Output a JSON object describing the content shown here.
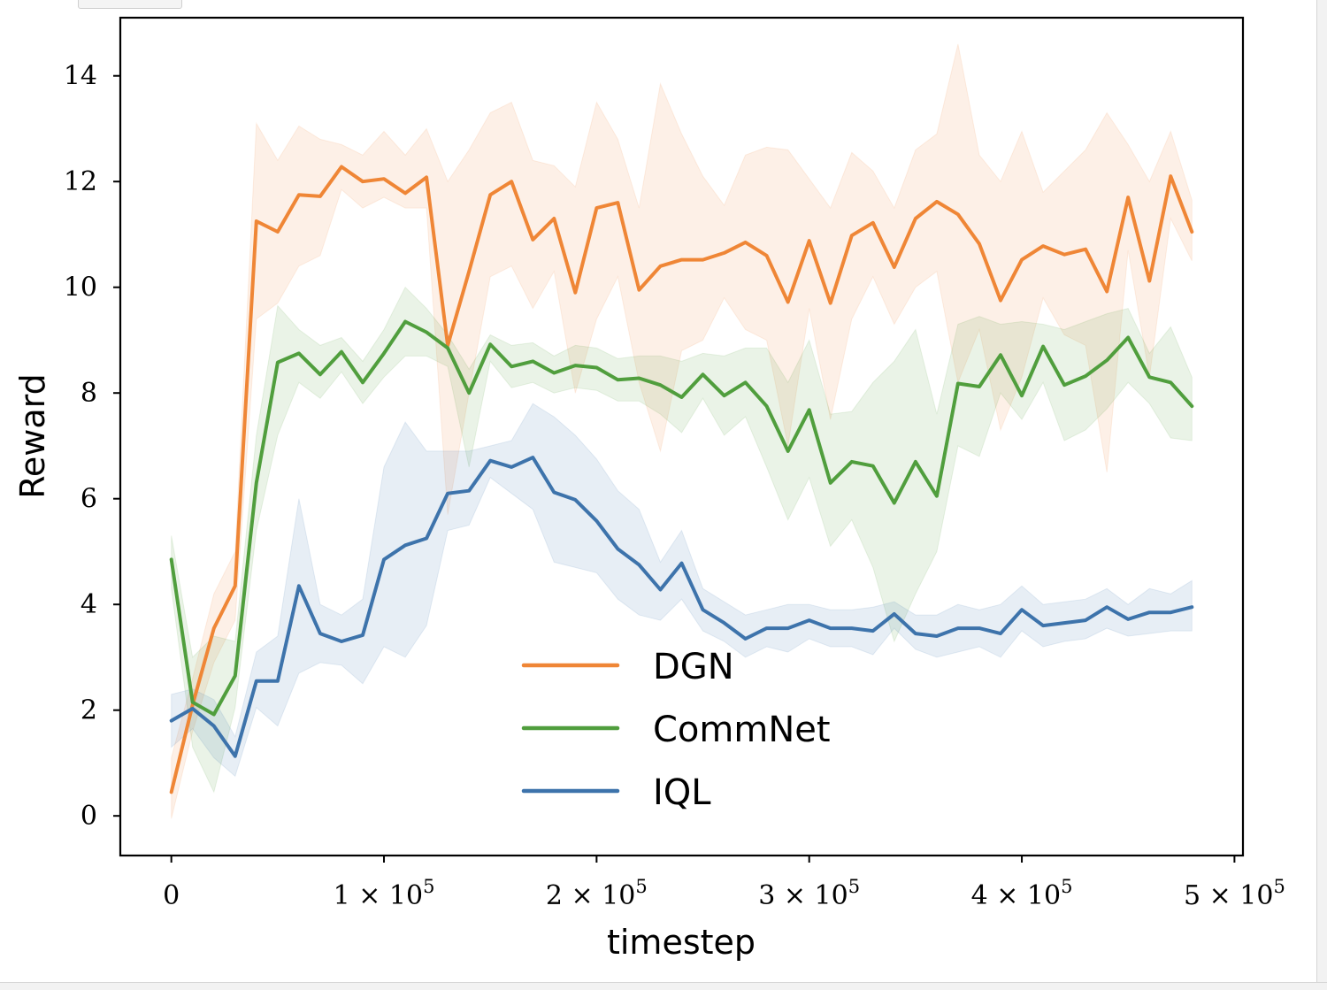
{
  "chart_data": {
    "type": "line",
    "xlabel": "timestep",
    "ylabel": "Reward",
    "xlim": [
      -24000,
      504000
    ],
    "ylim": [
      -0.75,
      15.1
    ],
    "x_ticks": [
      {
        "value": 0,
        "mant": "0",
        "exp": ""
      },
      {
        "value": 100000,
        "mant": "1 × 10",
        "exp": "5"
      },
      {
        "value": 200000,
        "mant": "2 × 10",
        "exp": "5"
      },
      {
        "value": 300000,
        "mant": "3 × 10",
        "exp": "5"
      },
      {
        "value": 400000,
        "mant": "4 × 10",
        "exp": "5"
      },
      {
        "value": 500000,
        "mant": "5 × 10",
        "exp": "5"
      }
    ],
    "y_ticks": [
      {
        "value": 0,
        "label": "0"
      },
      {
        "value": 2,
        "label": "2"
      },
      {
        "value": 4,
        "label": "4"
      },
      {
        "value": 6,
        "label": "6"
      },
      {
        "value": 8,
        "label": "8"
      },
      {
        "value": 10,
        "label": "10"
      },
      {
        "value": 12,
        "label": "12"
      },
      {
        "value": 14,
        "label": "14"
      }
    ],
    "x": [
      0,
      10000,
      20000,
      30000,
      40000,
      50000,
      60000,
      70000,
      80000,
      90000,
      100000,
      110000,
      120000,
      130000,
      140000,
      150000,
      160000,
      170000,
      180000,
      190000,
      200000,
      210000,
      220000,
      230000,
      240000,
      250000,
      260000,
      270000,
      280000,
      290000,
      300000,
      310000,
      320000,
      330000,
      340000,
      350000,
      360000,
      370000,
      380000,
      390000,
      400000,
      410000,
      420000,
      430000,
      440000,
      450000,
      460000,
      470000,
      480000
    ],
    "legend_position": "lower center",
    "series": [
      {
        "name": "DGN",
        "color": "#ef8636",
        "values": [
          0.45,
          2.1,
          3.55,
          4.35,
          11.25,
          11.05,
          11.75,
          11.72,
          12.28,
          12.0,
          12.05,
          11.78,
          12.08,
          8.9,
          10.3,
          11.75,
          12.0,
          10.9,
          11.3,
          9.9,
          11.5,
          11.6,
          9.95,
          10.4,
          10.52,
          10.52,
          10.65,
          10.85,
          10.6,
          9.72,
          10.88,
          9.7,
          10.98,
          11.22,
          10.38,
          11.3,
          11.62,
          11.38,
          10.82,
          9.75,
          10.52,
          10.78,
          10.62,
          10.72,
          9.92,
          11.7,
          10.12,
          12.1,
          11.05
        ],
        "band_upper": [
          1.1,
          2.6,
          4.2,
          5.0,
          13.1,
          12.4,
          13.05,
          12.8,
          12.7,
          12.5,
          12.95,
          12.5,
          13.0,
          12.0,
          12.6,
          13.3,
          13.5,
          12.4,
          12.3,
          11.9,
          13.5,
          12.8,
          11.5,
          13.85,
          12.9,
          12.1,
          11.55,
          12.5,
          12.65,
          12.6,
          12.05,
          11.5,
          12.55,
          12.2,
          11.5,
          12.6,
          12.9,
          14.6,
          12.5,
          12.0,
          12.95,
          11.8,
          12.2,
          12.6,
          13.3,
          12.7,
          12.0,
          12.95,
          11.65
        ],
        "band_lower": [
          -0.05,
          1.6,
          2.9,
          3.7,
          9.4,
          9.7,
          10.4,
          10.6,
          11.85,
          11.5,
          11.7,
          11.5,
          11.5,
          5.7,
          8.0,
          10.2,
          10.4,
          9.6,
          10.3,
          8.0,
          9.4,
          10.2,
          8.2,
          6.9,
          8.8,
          9.0,
          9.8,
          9.2,
          9.0,
          7.0,
          9.6,
          7.5,
          9.4,
          10.2,
          9.3,
          10.0,
          10.3,
          8.2,
          9.2,
          7.3,
          8.3,
          9.8,
          9.1,
          8.9,
          6.5,
          10.7,
          8.3,
          11.3,
          10.5
        ]
      },
      {
        "name": "CommNet",
        "color": "#509e3d",
        "values": [
          4.85,
          2.15,
          1.92,
          2.65,
          6.3,
          8.58,
          8.75,
          8.35,
          8.78,
          8.2,
          8.75,
          9.35,
          9.15,
          8.85,
          8.0,
          8.92,
          8.5,
          8.6,
          8.38,
          8.52,
          8.48,
          8.25,
          8.28,
          8.15,
          7.92,
          8.35,
          7.95,
          8.2,
          7.75,
          6.9,
          7.68,
          6.3,
          6.7,
          6.62,
          5.92,
          6.7,
          6.05,
          8.18,
          8.12,
          8.72,
          7.95,
          8.88,
          8.15,
          8.32,
          8.62,
          9.05,
          8.3,
          8.2,
          7.75
        ],
        "band_upper": [
          5.3,
          3.0,
          3.4,
          3.3,
          7.2,
          9.65,
          9.2,
          8.9,
          9.05,
          8.6,
          9.2,
          10.0,
          9.6,
          9.1,
          8.45,
          9.1,
          8.9,
          8.95,
          8.7,
          8.9,
          8.85,
          8.65,
          8.7,
          8.7,
          8.6,
          8.75,
          8.7,
          8.85,
          8.85,
          8.2,
          9.0,
          7.6,
          7.65,
          8.2,
          8.6,
          9.2,
          7.6,
          9.3,
          9.45,
          9.3,
          9.35,
          9.3,
          9.2,
          9.35,
          9.5,
          9.6,
          8.75,
          9.25,
          8.3
        ],
        "band_lower": [
          4.3,
          1.3,
          0.45,
          2.05,
          5.4,
          7.2,
          8.2,
          7.9,
          8.4,
          7.8,
          8.3,
          8.7,
          8.7,
          8.5,
          6.6,
          8.6,
          8.1,
          8.2,
          8.0,
          8.1,
          8.05,
          7.85,
          7.85,
          7.6,
          7.25,
          7.9,
          7.2,
          7.55,
          6.6,
          5.6,
          6.4,
          5.1,
          5.6,
          4.7,
          3.3,
          4.2,
          5.0,
          7.0,
          6.8,
          8.0,
          7.5,
          8.2,
          7.1,
          7.3,
          7.7,
          8.2,
          7.8,
          7.15,
          7.1
        ]
      },
      {
        "name": "IQL",
        "color": "#3d73ab",
        "values": [
          1.8,
          2.03,
          1.7,
          1.13,
          2.55,
          2.55,
          4.35,
          3.45,
          3.3,
          3.42,
          4.85,
          5.12,
          5.25,
          6.1,
          6.15,
          6.72,
          6.6,
          6.78,
          6.12,
          5.98,
          5.58,
          5.05,
          4.75,
          4.28,
          4.78,
          3.9,
          3.65,
          3.35,
          3.55,
          3.55,
          3.7,
          3.55,
          3.55,
          3.5,
          3.82,
          3.45,
          3.4,
          3.55,
          3.55,
          3.45,
          3.9,
          3.6,
          3.65,
          3.7,
          3.95,
          3.72,
          3.85,
          3.85,
          3.95
        ],
        "band_upper": [
          2.3,
          2.4,
          2.2,
          1.5,
          3.1,
          3.4,
          6.0,
          4.0,
          3.8,
          4.1,
          6.6,
          7.45,
          6.9,
          6.9,
          6.9,
          7.0,
          7.1,
          7.8,
          7.55,
          7.2,
          6.75,
          6.15,
          5.8,
          4.8,
          5.4,
          4.3,
          4.05,
          3.8,
          3.9,
          4.0,
          4.0,
          3.9,
          3.9,
          3.95,
          4.05,
          3.8,
          3.8,
          4.0,
          3.9,
          4.0,
          4.35,
          4.0,
          4.05,
          4.1,
          4.3,
          4.0,
          4.3,
          4.2,
          4.45
        ],
        "band_lower": [
          1.3,
          1.65,
          1.1,
          0.75,
          2.05,
          1.7,
          2.7,
          2.9,
          2.85,
          2.5,
          3.2,
          3.0,
          3.6,
          5.4,
          5.5,
          6.4,
          6.1,
          5.8,
          4.8,
          4.7,
          4.6,
          4.1,
          3.8,
          3.7,
          4.1,
          3.5,
          3.3,
          3.0,
          3.2,
          3.1,
          3.35,
          3.2,
          3.2,
          3.05,
          3.55,
          3.15,
          3.0,
          3.1,
          3.2,
          3.0,
          3.5,
          3.2,
          3.3,
          3.35,
          3.55,
          3.4,
          3.45,
          3.5,
          3.5
        ]
      }
    ]
  }
}
